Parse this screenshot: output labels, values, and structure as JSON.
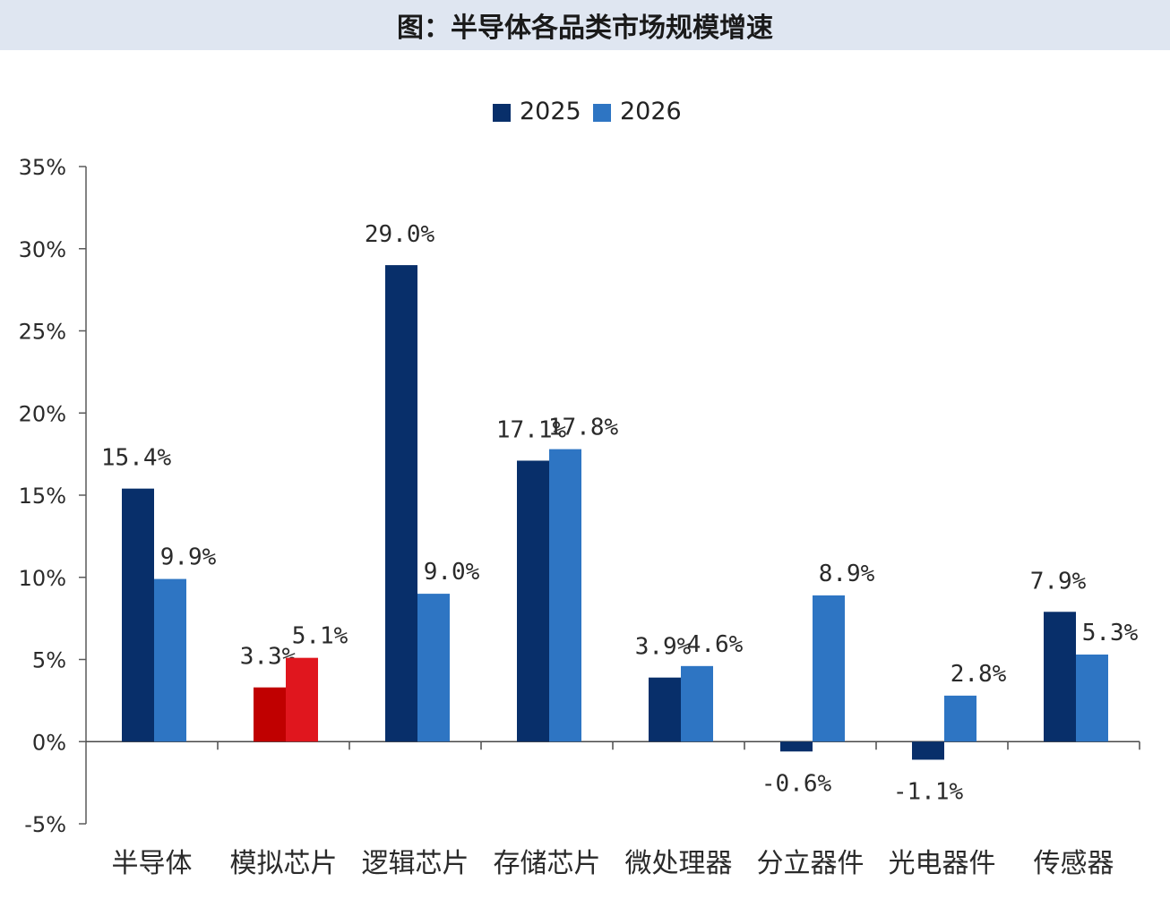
{
  "header": {
    "title": "图：半导体各品类市场规模增速"
  },
  "chart_data": {
    "type": "bar",
    "title": "图：半导体各品类市场规模增速",
    "xlabel": "",
    "ylabel": "",
    "ylim": [
      -5,
      35
    ],
    "yticks": [
      -5,
      0,
      5,
      10,
      15,
      20,
      25,
      30,
      35
    ],
    "ytick_labels": [
      "-5%",
      "0%",
      "5%",
      "10%",
      "15%",
      "20%",
      "25%",
      "30%",
      "35%"
    ],
    "categories": [
      "半导体",
      "模拟芯片",
      "逻辑芯片",
      "存储芯片",
      "微处理器",
      "分立器件",
      "光电器件",
      "传感器"
    ],
    "series": [
      {
        "name": "2025",
        "color": "#082f6a",
        "values": [
          15.4,
          3.3,
          29.0,
          17.1,
          3.9,
          -0.6,
          -1.1,
          7.9
        ],
        "labels": [
          "15.4%",
          "3.3%",
          "29.0%",
          "17.1%",
          "3.9%",
          "-0.6%",
          "-1.1%",
          "7.9%"
        ]
      },
      {
        "name": "2026",
        "color": "#2e75c3",
        "values": [
          9.9,
          5.1,
          9.0,
          17.8,
          4.6,
          8.9,
          2.8,
          5.3
        ],
        "labels": [
          "9.9%",
          "5.1%",
          "9.0%",
          "17.8%",
          "4.6%",
          "8.9%",
          "2.8%",
          "5.3%"
        ]
      }
    ],
    "highlight": {
      "category_index": 1,
      "colors": [
        "#c00000",
        "#e0161e"
      ]
    },
    "legend_position": "top-center",
    "grid": false
  }
}
